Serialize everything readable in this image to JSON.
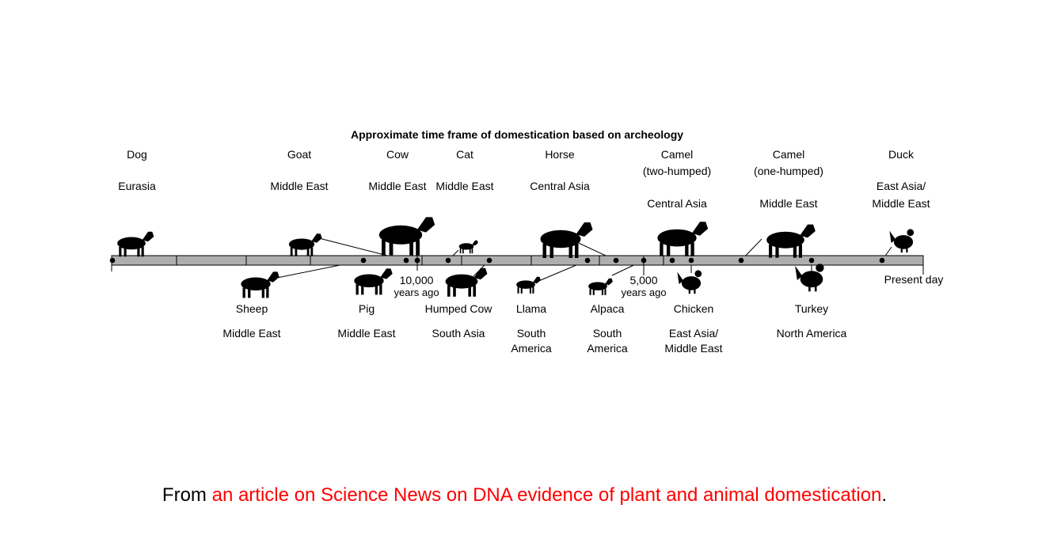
{
  "title": "Approximate time frame of domestication based on archeology",
  "axis": {
    "marks": [
      {
        "text1": "10,000",
        "text2": "years ago"
      },
      {
        "text1": "5,000",
        "text2": "years ago"
      },
      {
        "text1": "Present day",
        "text2": ""
      }
    ]
  },
  "animals": [
    {
      "name": "Dog",
      "region": [
        "Eurasia"
      ],
      "icon": "dog-icon"
    },
    {
      "name": "Goat",
      "region": [
        "Middle East"
      ],
      "icon": "goat-icon"
    },
    {
      "name": "Cow",
      "region": [
        "Middle East"
      ],
      "icon": "cow-icon"
    },
    {
      "name": "Cat",
      "region": [
        "Middle East"
      ],
      "icon": "cat-icon"
    },
    {
      "name": "Horse",
      "region": [
        "Central Asia"
      ],
      "icon": "horse-icon"
    },
    {
      "name": "Camel",
      "name2": "(two-humped)",
      "region": [
        "Central Asia"
      ],
      "icon": "bactrian-camel-icon"
    },
    {
      "name": "Camel",
      "name2": "(one-humped)",
      "region": [
        "Middle East"
      ],
      "icon": "dromedary-camel-icon"
    },
    {
      "name": "Duck",
      "region": [
        "East Asia/",
        "Middle East"
      ],
      "icon": "duck-icon"
    },
    {
      "name": "Sheep",
      "region": [
        "Middle East"
      ],
      "icon": "sheep-icon"
    },
    {
      "name": "Pig",
      "region": [
        "Middle East"
      ],
      "icon": "pig-icon"
    },
    {
      "name": "Humped Cow",
      "region": [
        "South Asia"
      ],
      "icon": "zebu-icon"
    },
    {
      "name": "Llama",
      "region": [
        "South",
        "America"
      ],
      "icon": "llama-icon"
    },
    {
      "name": "Alpaca",
      "region": [
        "South",
        "America"
      ],
      "icon": "alpaca-icon"
    },
    {
      "name": "Chicken",
      "region": [
        "East Asia/",
        "Middle East"
      ],
      "icon": "chicken-icon"
    },
    {
      "name": "Turkey",
      "region": [
        "North America"
      ],
      "icon": "turkey-icon"
    }
  ],
  "caption": {
    "prefix": "From ",
    "link": "an article on Science News on DNA evidence of plant and animal domestication",
    "suffix": "."
  }
}
